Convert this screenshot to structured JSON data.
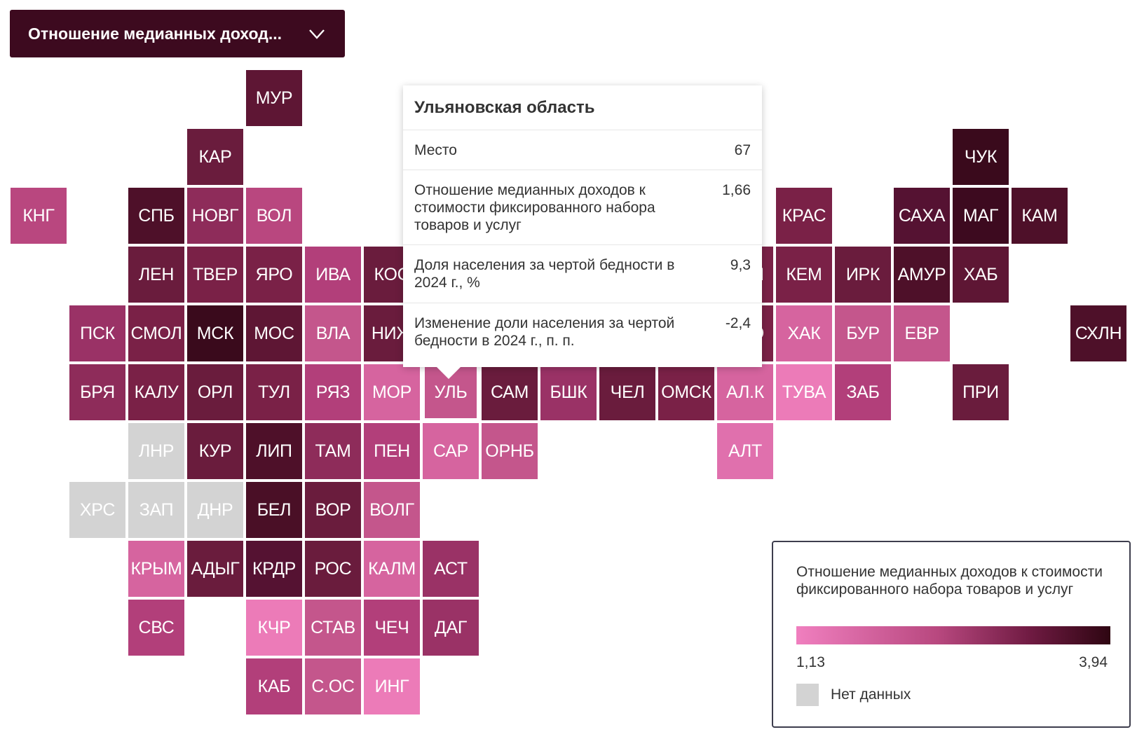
{
  "indicator_select": {
    "selected": "Отношение медианных доход...",
    "icon": "chevron-down-icon"
  },
  "tooltip": {
    "title": "Ульяновская область",
    "rows": [
      {
        "label": "Место",
        "value": "67"
      },
      {
        "label": "Отношение медианных доходов к стоимости фиксированного набора товаров и услуг",
        "value": "1,66"
      },
      {
        "label": "Доля населения за чертой бедности в 2024 г., %",
        "value": "9,3"
      },
      {
        "label": "Изменение доли населения за чертой бедности в 2024 г., п. п.",
        "value": "-2,4"
      }
    ]
  },
  "legend": {
    "title": "Отношение медианных доходов к стоимости фиксированного набора товаров и услуг",
    "min": "1,13",
    "max": "3,94",
    "no_data": "Нет данных",
    "colors": {
      "low": "#f07fbf",
      "high": "#2e0612",
      "no_data": "#d3d3d3"
    }
  },
  "tiles": [
    {
      "code": "МУР",
      "col": 4,
      "row": 0,
      "color": "#5e1634"
    },
    {
      "code": "КАР",
      "col": 3,
      "row": 1,
      "color": "#6a1c3d"
    },
    {
      "code": "ЧУК",
      "col": 16,
      "row": 1,
      "color": "#3a0a1c"
    },
    {
      "code": "КНГ",
      "col": 0,
      "row": 2,
      "color": "#b9477f"
    },
    {
      "code": "СПБ",
      "col": 2,
      "row": 2,
      "color": "#4e1029"
    },
    {
      "code": "НОВГ",
      "col": 3,
      "row": 2,
      "color": "#8e2c5a"
    },
    {
      "code": "ВОЛ",
      "col": 4,
      "row": 2,
      "color": "#b9477f"
    },
    {
      "code": "КРАС",
      "col": 13,
      "row": 2,
      "color": "#7a2147"
    },
    {
      "code": "САХА",
      "col": 15,
      "row": 2,
      "color": "#551232"
    },
    {
      "code": "МАГ",
      "col": 16,
      "row": 2,
      "color": "#3d0a1f"
    },
    {
      "code": "КАМ",
      "col": 17,
      "row": 2,
      "color": "#4e1029"
    },
    {
      "code": "ЛЕН",
      "col": 2,
      "row": 3,
      "color": "#6a1c3d"
    },
    {
      "code": "ТВЕР",
      "col": 3,
      "row": 3,
      "color": "#7a2147"
    },
    {
      "code": "ЯРО",
      "col": 4,
      "row": 3,
      "color": "#7a2147"
    },
    {
      "code": "ИВА",
      "col": 5,
      "row": 3,
      "color": "#b23f7a"
    },
    {
      "code": "КОС",
      "col": 6,
      "row": 3,
      "color": "#6a1c3d"
    },
    {
      "code": "ТОМ",
      "col": 12,
      "row": 3,
      "color": "#7a2147"
    },
    {
      "code": "КЕМ",
      "col": 13,
      "row": 3,
      "color": "#7a2147"
    },
    {
      "code": "ИРК",
      "col": 14,
      "row": 3,
      "color": "#6a1c3d"
    },
    {
      "code": "АМУР",
      "col": 15,
      "row": 3,
      "color": "#4e1029"
    },
    {
      "code": "ХАБ",
      "col": 16,
      "row": 3,
      "color": "#5e1634"
    },
    {
      "code": "ПСК",
      "col": 1,
      "row": 4,
      "color": "#9a3266"
    },
    {
      "code": "СМОЛ",
      "col": 2,
      "row": 4,
      "color": "#7a2147"
    },
    {
      "code": "МСК",
      "col": 3,
      "row": 4,
      "color": "#3a0a1c"
    },
    {
      "code": "МОС",
      "col": 4,
      "row": 4,
      "color": "#5e1634"
    },
    {
      "code": "ВЛА",
      "col": 5,
      "row": 4,
      "color": "#c4568c"
    },
    {
      "code": "НИЖ",
      "col": 6,
      "row": 4,
      "color": "#6a1c3d"
    },
    {
      "code": "НСО",
      "col": 12,
      "row": 4,
      "color": "#7a2147"
    },
    {
      "code": "ХАК",
      "col": 13,
      "row": 4,
      "color": "#d6649f"
    },
    {
      "code": "БУР",
      "col": 14,
      "row": 4,
      "color": "#c4568c"
    },
    {
      "code": "ЕВР",
      "col": 15,
      "row": 4,
      "color": "#c4568c"
    },
    {
      "code": "СХЛН",
      "col": 18,
      "row": 4,
      "color": "#4e1029"
    },
    {
      "code": "БРЯ",
      "col": 1,
      "row": 5,
      "color": "#8e2c5a"
    },
    {
      "code": "КАЛУ",
      "col": 2,
      "row": 5,
      "color": "#7a2147"
    },
    {
      "code": "ОРЛ",
      "col": 3,
      "row": 5,
      "color": "#6a1c3d"
    },
    {
      "code": "ТУЛ",
      "col": 4,
      "row": 5,
      "color": "#7a2147"
    },
    {
      "code": "РЯЗ",
      "col": 5,
      "row": 5,
      "color": "#b23f7a"
    },
    {
      "code": "МОР",
      "col": 6,
      "row": 5,
      "color": "#d6649f"
    },
    {
      "code": "УЛЬ",
      "col": 7,
      "row": 5,
      "color": "#c4568c",
      "selected": true
    },
    {
      "code": "САМ",
      "col": 8,
      "row": 5,
      "color": "#6a1c3d"
    },
    {
      "code": "БШК",
      "col": 9,
      "row": 5,
      "color": "#9a3266"
    },
    {
      "code": "ЧЕЛ",
      "col": 10,
      "row": 5,
      "color": "#6a1c3d"
    },
    {
      "code": "ОМСК",
      "col": 11,
      "row": 5,
      "color": "#7a2147"
    },
    {
      "code": "АЛ.К",
      "col": 12,
      "row": 5,
      "color": "#d6649f"
    },
    {
      "code": "ТУВА",
      "col": 13,
      "row": 5,
      "color": "#ec7bb8"
    },
    {
      "code": "ЗАБ",
      "col": 14,
      "row": 5,
      "color": "#b23f7a"
    },
    {
      "code": "ПРИ",
      "col": 16,
      "row": 5,
      "color": "#6a1c3d"
    },
    {
      "code": "ЛНР",
      "col": 2,
      "row": 6,
      "color": "#d3d3d3"
    },
    {
      "code": "КУР",
      "col": 3,
      "row": 6,
      "color": "#6a1c3d"
    },
    {
      "code": "ЛИП",
      "col": 4,
      "row": 6,
      "color": "#4e1029"
    },
    {
      "code": "ТАМ",
      "col": 5,
      "row": 6,
      "color": "#8e2c5a"
    },
    {
      "code": "ПЕН",
      "col": 6,
      "row": 6,
      "color": "#b23f7a"
    },
    {
      "code": "САР",
      "col": 7,
      "row": 6,
      "color": "#d6649f"
    },
    {
      "code": "ОРНБ",
      "col": 8,
      "row": 6,
      "color": "#c4568c"
    },
    {
      "code": "АЛТ",
      "col": 12,
      "row": 6,
      "color": "#e070ad"
    },
    {
      "code": "ХРС",
      "col": 1,
      "row": 7,
      "color": "#d3d3d3"
    },
    {
      "code": "ЗАП",
      "col": 2,
      "row": 7,
      "color": "#d3d3d3"
    },
    {
      "code": "ДНР",
      "col": 3,
      "row": 7,
      "color": "#d3d3d3"
    },
    {
      "code": "БЕЛ",
      "col": 4,
      "row": 7,
      "color": "#4a0f26"
    },
    {
      "code": "ВОР",
      "col": 5,
      "row": 7,
      "color": "#6a1c3d"
    },
    {
      "code": "ВОЛГ",
      "col": 6,
      "row": 7,
      "color": "#c4568c"
    },
    {
      "code": "КРЫМ",
      "col": 2,
      "row": 8,
      "color": "#d6649f"
    },
    {
      "code": "АДЫГ",
      "col": 3,
      "row": 8,
      "color": "#6a1c3d"
    },
    {
      "code": "КРДР",
      "col": 4,
      "row": 8,
      "color": "#551232"
    },
    {
      "code": "РОС",
      "col": 5,
      "row": 8,
      "color": "#6a1c3d"
    },
    {
      "code": "КАЛМ",
      "col": 6,
      "row": 8,
      "color": "#d6649f"
    },
    {
      "code": "АСТ",
      "col": 7,
      "row": 8,
      "color": "#9a3266"
    },
    {
      "code": "СВС",
      "col": 2,
      "row": 9,
      "color": "#b23f7a"
    },
    {
      "code": "КЧР",
      "col": 4,
      "row": 9,
      "color": "#ec7bb8"
    },
    {
      "code": "СТАВ",
      "col": 5,
      "row": 9,
      "color": "#c4568c"
    },
    {
      "code": "ЧЕЧ",
      "col": 6,
      "row": 9,
      "color": "#b23f7a"
    },
    {
      "code": "ДАГ",
      "col": 7,
      "row": 9,
      "color": "#9a3266"
    },
    {
      "code": "КАБ",
      "col": 4,
      "row": 10,
      "color": "#b23f7a"
    },
    {
      "code": "С.ОС",
      "col": 5,
      "row": 10,
      "color": "#c4568c"
    },
    {
      "code": "ИНГ",
      "col": 6,
      "row": 10,
      "color": "#ec7bb8"
    }
  ]
}
